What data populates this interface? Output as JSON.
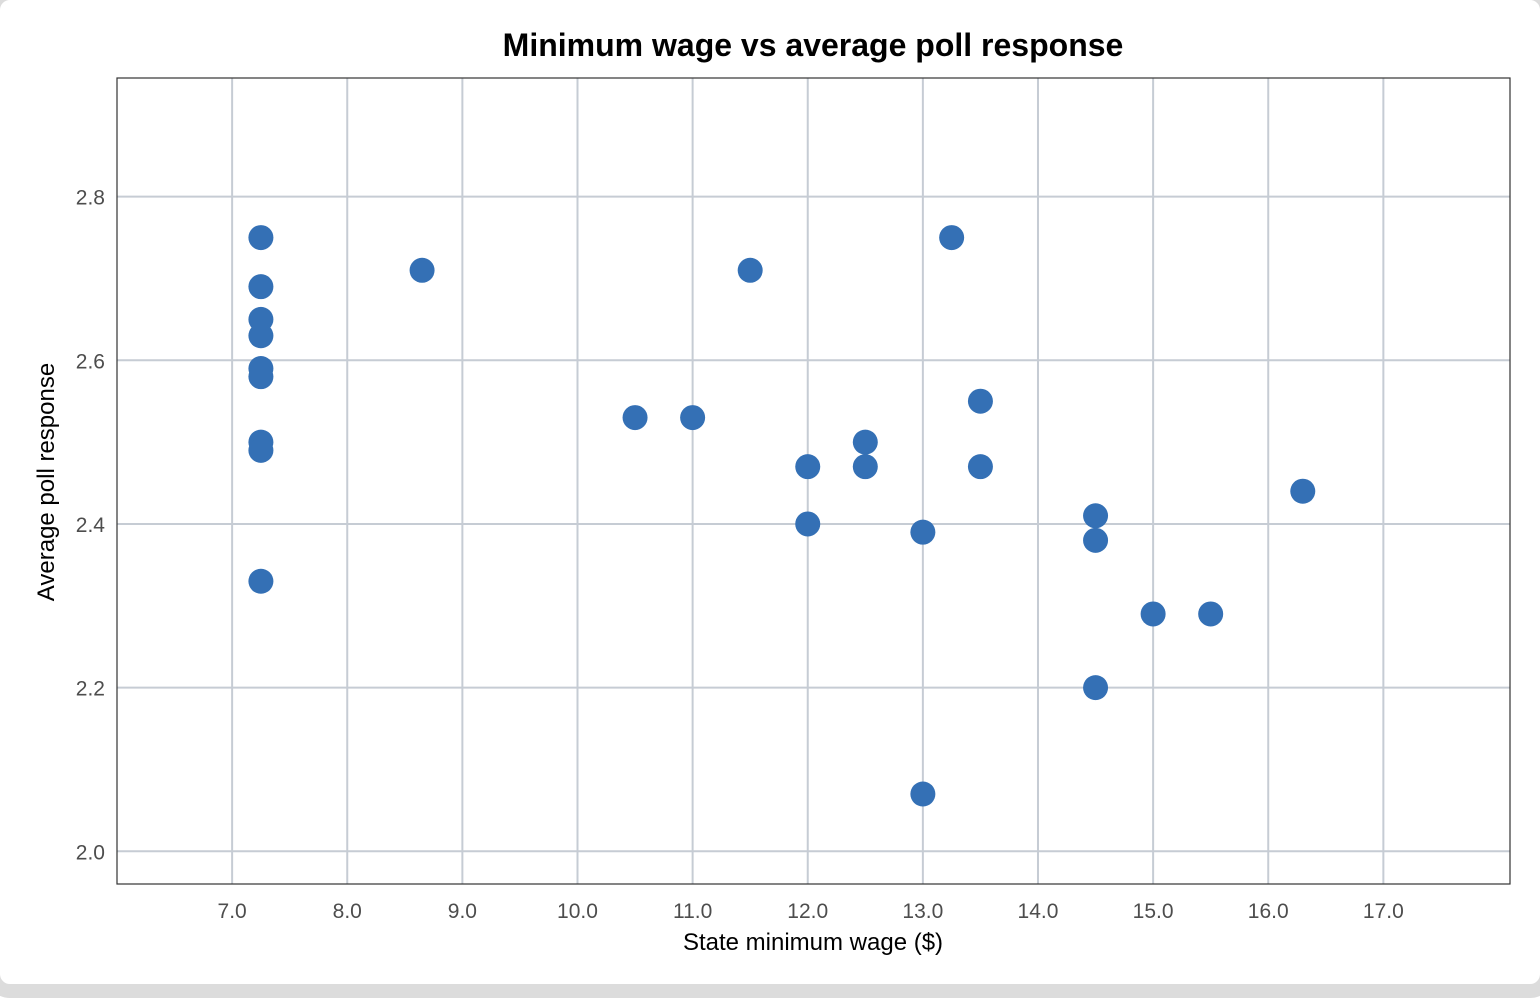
{
  "chart_data": {
    "type": "scatter",
    "title": "Minimum wage vs average poll response",
    "xlabel": "State minimum wage ($)",
    "ylabel": "Average poll response",
    "xlim": [
      6.0,
      18.1
    ],
    "ylim": [
      1.96,
      2.945
    ],
    "x_ticks": [
      7.0,
      8.0,
      9.0,
      10.0,
      11.0,
      12.0,
      13.0,
      14.0,
      15.0,
      16.0,
      17.0
    ],
    "x_tick_labels": [
      "7.0",
      "8.0",
      "9.0",
      "10.0",
      "11.0",
      "12.0",
      "13.0",
      "14.0",
      "15.0",
      "16.0",
      "17.0"
    ],
    "y_ticks": [
      2.0,
      2.2,
      2.4,
      2.6,
      2.8
    ],
    "y_tick_labels": [
      "2.0",
      "2.2",
      "2.4",
      "2.6",
      "2.8"
    ],
    "grid": true,
    "point_color": "#3470b5",
    "grid_color": "#c6ccd4",
    "points": [
      {
        "x": 7.25,
        "y": 2.75
      },
      {
        "x": 7.25,
        "y": 2.69
      },
      {
        "x": 7.25,
        "y": 2.65
      },
      {
        "x": 7.25,
        "y": 2.63
      },
      {
        "x": 7.25,
        "y": 2.59
      },
      {
        "x": 7.25,
        "y": 2.58
      },
      {
        "x": 7.25,
        "y": 2.5
      },
      {
        "x": 7.25,
        "y": 2.49
      },
      {
        "x": 7.25,
        "y": 2.33
      },
      {
        "x": 8.65,
        "y": 2.71
      },
      {
        "x": 10.5,
        "y": 2.53
      },
      {
        "x": 11.0,
        "y": 2.53
      },
      {
        "x": 11.5,
        "y": 2.71
      },
      {
        "x": 12.0,
        "y": 2.47
      },
      {
        "x": 12.0,
        "y": 2.4
      },
      {
        "x": 12.5,
        "y": 2.5
      },
      {
        "x": 12.5,
        "y": 2.47
      },
      {
        "x": 13.0,
        "y": 2.39
      },
      {
        "x": 13.0,
        "y": 2.07
      },
      {
        "x": 13.25,
        "y": 2.75
      },
      {
        "x": 13.5,
        "y": 2.55
      },
      {
        "x": 13.5,
        "y": 2.47
      },
      {
        "x": 14.5,
        "y": 2.41
      },
      {
        "x": 14.5,
        "y": 2.38
      },
      {
        "x": 14.5,
        "y": 2.2
      },
      {
        "x": 15.0,
        "y": 2.29
      },
      {
        "x": 15.5,
        "y": 2.29
      },
      {
        "x": 16.3,
        "y": 2.44
      }
    ]
  }
}
